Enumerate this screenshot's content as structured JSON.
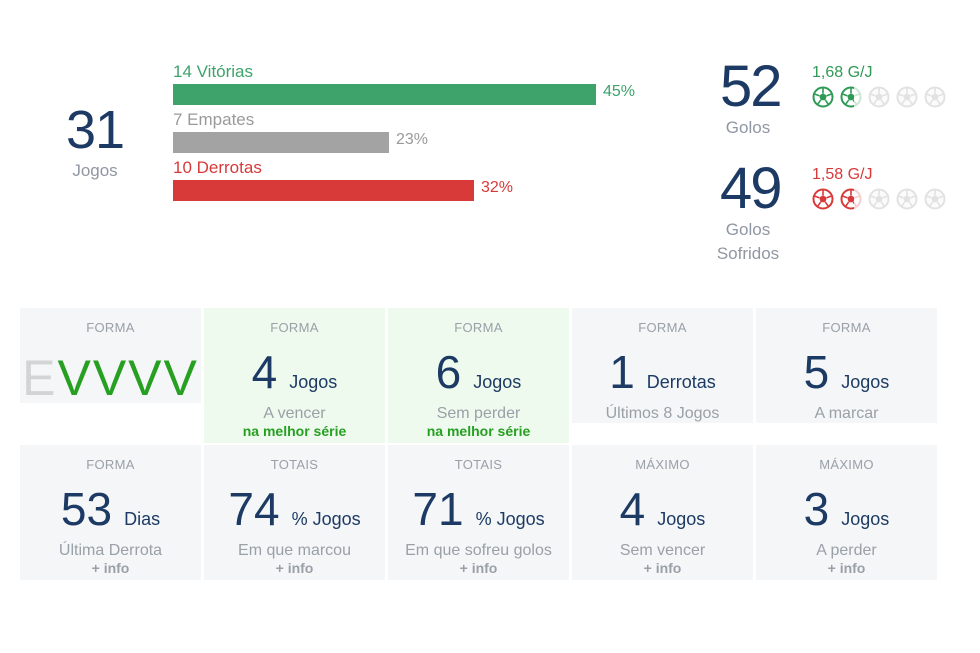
{
  "summary": {
    "games": {
      "value": "31",
      "label": "Jogos"
    },
    "results": [
      {
        "label": "14 Vitórias",
        "pct": "45%",
        "fraction": 0.45,
        "color": "#3da36b"
      },
      {
        "label": "7 Empates",
        "pct": "23%",
        "fraction": 0.23,
        "color": "#a3a3a3"
      },
      {
        "label": "10 Derrotas",
        "pct": "32%",
        "fraction": 0.32,
        "color": "#d83a3a"
      }
    ],
    "goals_for": {
      "value": "52",
      "label": "Golos",
      "per_game": "1,68 G/J",
      "filled_balls": 2,
      "total_balls": 5,
      "color": "#2e9a55"
    },
    "goals_against": {
      "value": "49",
      "label_line1": "Golos",
      "label_line2": "Sofridos",
      "per_game": "1,58 G/J",
      "filled_balls": 2,
      "total_balls": 5,
      "color": "#d83a3a"
    }
  },
  "form_card": {
    "caption": "FORMA",
    "sequence": [
      "E",
      "V",
      "V",
      "V",
      "V"
    ]
  },
  "cards_row1": [
    {
      "caption": "FORMA",
      "value": "4",
      "unit": "Jogos",
      "sub": "A vencer",
      "foot": "na melhor série"
    },
    {
      "caption": "FORMA",
      "value": "6",
      "unit": "Jogos",
      "sub": "Sem perder",
      "foot": "na melhor série"
    },
    {
      "caption": "FORMA",
      "value": "1",
      "unit": "Derrotas",
      "sub": "Últimos 8 Jogos",
      "foot": ""
    },
    {
      "caption": "FORMA",
      "value": "5",
      "unit": "Jogos",
      "sub": "A marcar",
      "foot": ""
    }
  ],
  "cards_row2": [
    {
      "caption": "FORMA",
      "value": "53",
      "unit": "Dias",
      "sub": "Última Derrota",
      "foot": "+ info"
    },
    {
      "caption": "TOTAIS",
      "value": "74",
      "unit": "% Jogos",
      "sub": "Em que marcou",
      "foot": "+ info"
    },
    {
      "caption": "TOTAIS",
      "value": "71",
      "unit": "% Jogos",
      "sub": "Em que sofreu golos",
      "foot": "+ info"
    },
    {
      "caption": "MÁXIMO",
      "value": "4",
      "unit": "Jogos",
      "sub": "Sem vencer",
      "foot": "+ info"
    },
    {
      "caption": "MÁXIMO",
      "value": "3",
      "unit": "Jogos",
      "sub": "A perder",
      "foot": "+ info"
    }
  ]
}
